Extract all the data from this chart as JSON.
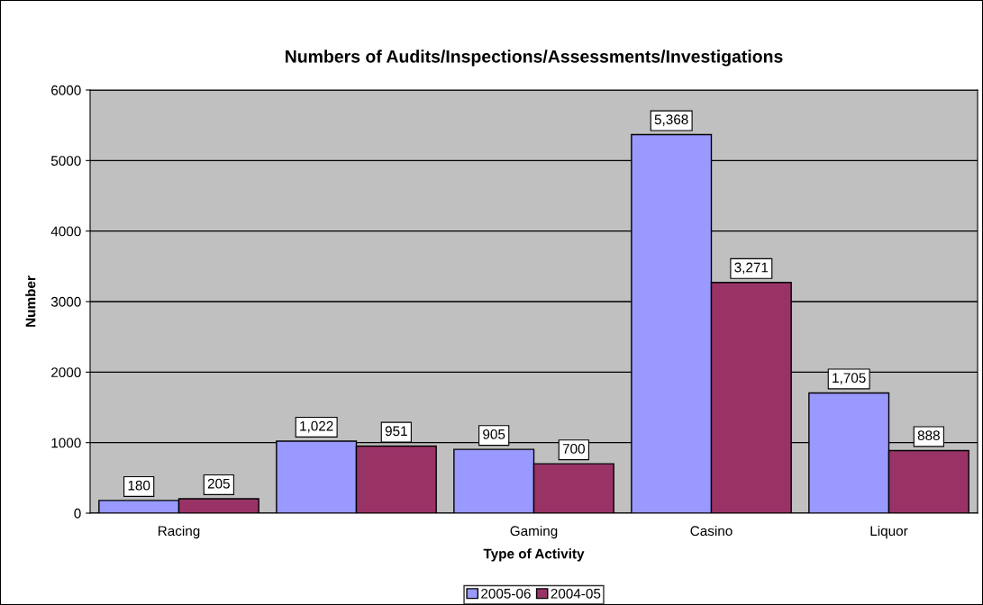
{
  "chart_data": {
    "type": "bar",
    "title": "Numbers of Audits/Inspections/Assessments/Investigations",
    "xlabel": "Type of Activity",
    "ylabel": "Number",
    "categories": [
      "Racing",
      null,
      "Gaming",
      "Casino",
      "Liquor"
    ],
    "series": [
      {
        "name": "2005-06",
        "color": "#9999ff",
        "values": [
          180,
          1022,
          905,
          5368,
          1705
        ],
        "value_labels": [
          "180",
          "1,022",
          "905",
          "5,368",
          "1,705"
        ]
      },
      {
        "name": "2004-05",
        "color": "#993366",
        "values": [
          205,
          951,
          700,
          3271,
          888
        ],
        "value_labels": [
          "205",
          "951",
          "700",
          "3,271",
          "888"
        ]
      }
    ],
    "ylim": [
      0,
      6000
    ],
    "yticks": [
      0,
      1000,
      2000,
      3000,
      4000,
      5000,
      6000
    ],
    "grid": "y",
    "legend": "bottom"
  }
}
